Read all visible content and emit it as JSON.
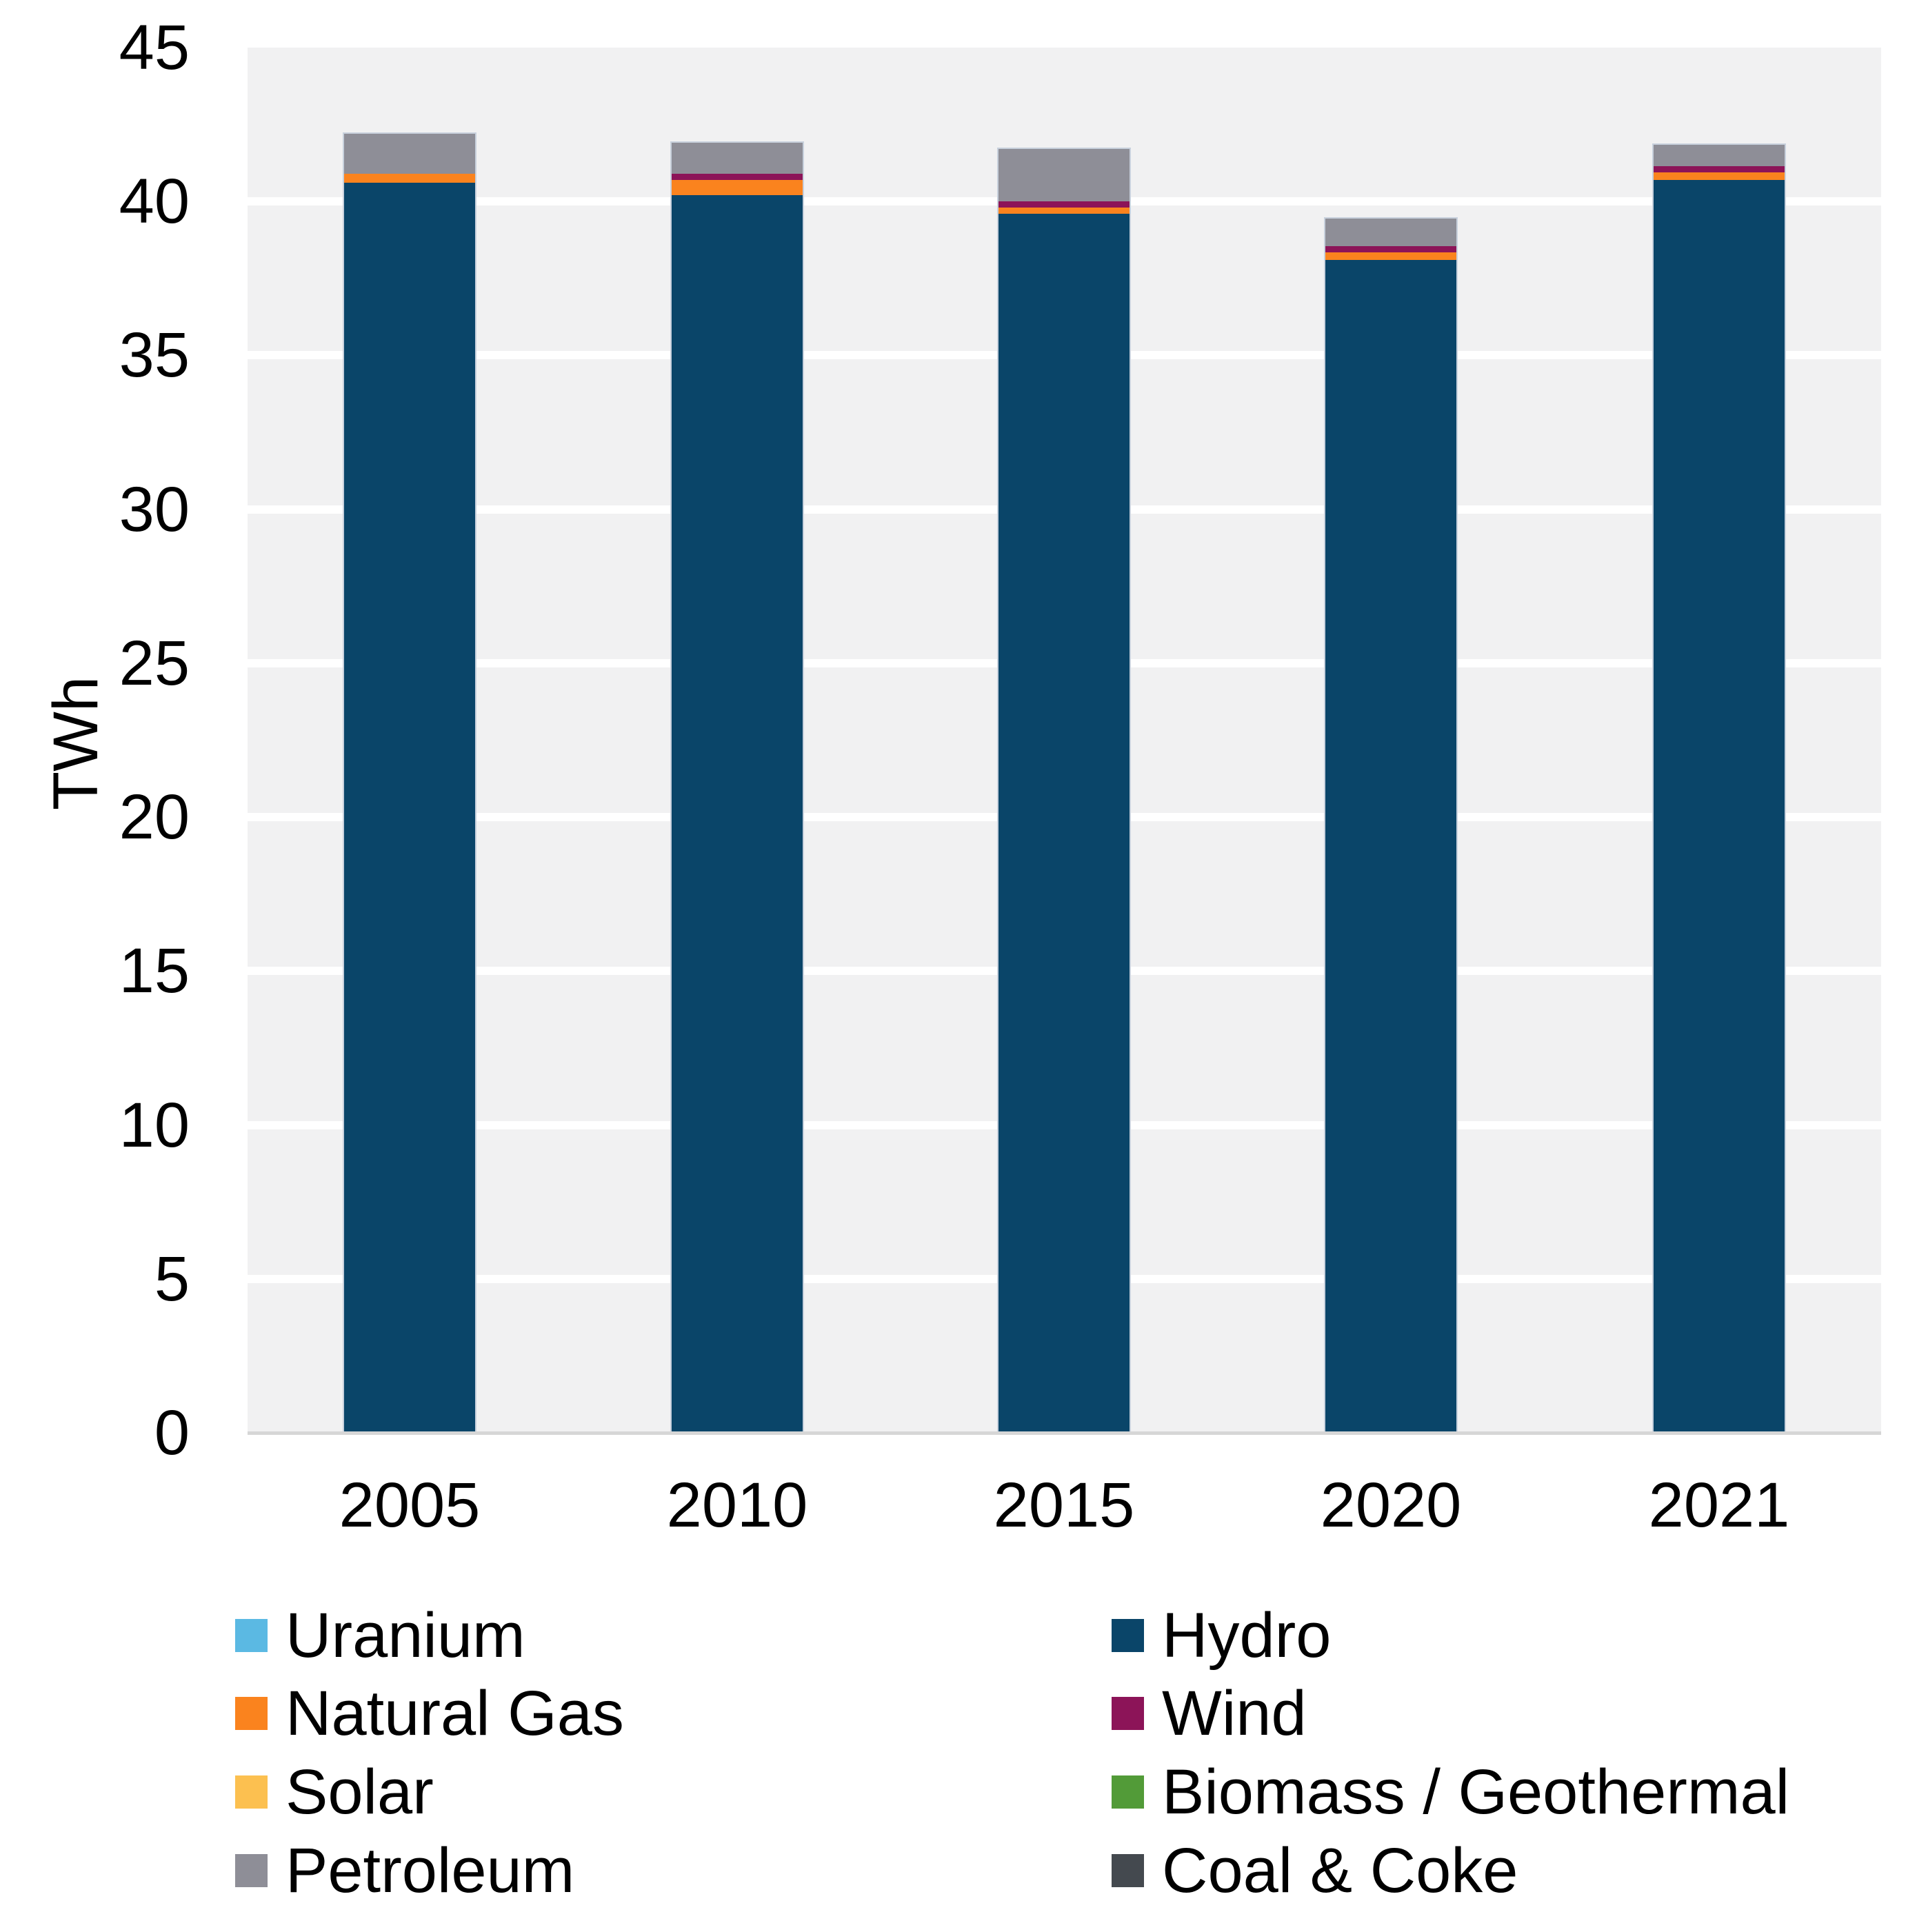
{
  "chart_data": {
    "type": "bar",
    "stacked": true,
    "title": "",
    "ylabel": "TWh",
    "xlabel": "",
    "ylim": [
      0,
      45
    ],
    "yticks": [
      0,
      5,
      10,
      15,
      20,
      25,
      30,
      35,
      40,
      45
    ],
    "grid": true,
    "legend_position": "bottom",
    "categories": [
      "2005",
      "2010",
      "2015",
      "2020",
      "2021"
    ],
    "series": [
      {
        "name": "Uranium",
        "color": "#5bb9e3",
        "values": [
          0,
          0,
          0,
          0,
          0
        ]
      },
      {
        "name": "Hydro",
        "color": "#0a4569",
        "values": [
          40.6,
          40.2,
          39.6,
          38.1,
          40.7
        ]
      },
      {
        "name": "Natural Gas",
        "color": "#fa831e",
        "values": [
          0.3,
          0.5,
          0.2,
          0.25,
          0.25
        ]
      },
      {
        "name": "Wind",
        "color": "#8c1458",
        "values": [
          0,
          0.2,
          0.2,
          0.2,
          0.2
        ]
      },
      {
        "name": "Solar",
        "color": "#fcc050",
        "values": [
          0,
          0,
          0,
          0,
          0
        ]
      },
      {
        "name": "Biomass / Geothermal",
        "color": "#529b38",
        "values": [
          0,
          0,
          0,
          0,
          0
        ]
      },
      {
        "name": "Petroleum",
        "color": "#8e8e97",
        "values": [
          1.3,
          1.0,
          1.7,
          0.9,
          0.7
        ]
      },
      {
        "name": "Coal & Coke",
        "color": "#44494f",
        "values": [
          0,
          0,
          0,
          0,
          0
        ]
      }
    ],
    "colors": {
      "plot_background": "#f1f1f2",
      "gridline": "#ffffff",
      "axis_line": "#d6d6d6",
      "bar_outline": "#c8d1dd",
      "text": "#000000"
    }
  }
}
